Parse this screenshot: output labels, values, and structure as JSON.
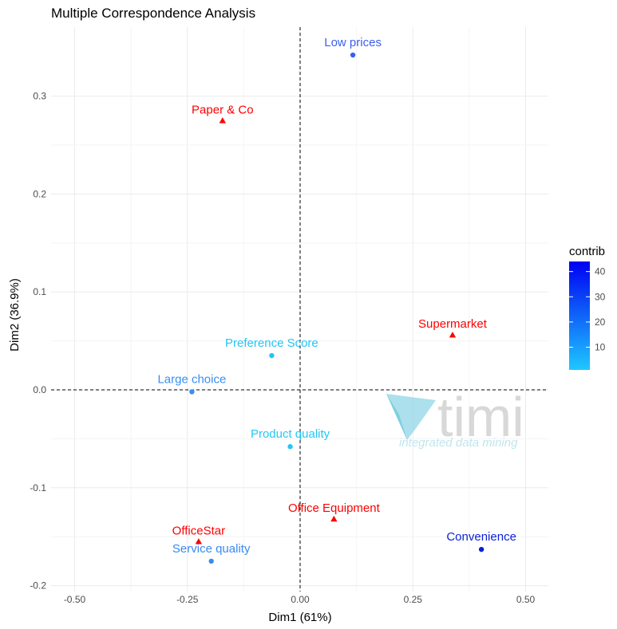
{
  "chart_data": {
    "type": "scatter",
    "title": "Multiple Correspondence Analysis",
    "xlabel": "Dim1 (61%)",
    "ylabel": "Dim2 (36.9%)",
    "xlim": [
      -0.55,
      0.55
    ],
    "ylim": [
      -0.2,
      0.36
    ],
    "xticks": [
      -0.5,
      -0.25,
      0.0,
      0.25,
      0.5
    ],
    "xtick_labels": [
      "-0.50",
      "-0.25",
      "0.00",
      "0.25",
      "0.50"
    ],
    "yticks": [
      -0.2,
      -0.1,
      0.0,
      0.1,
      0.2,
      0.3
    ],
    "ytick_labels": [
      "-0.2",
      "-0.1",
      "0.0",
      "0.1",
      "0.2",
      "0.3"
    ],
    "grid": true,
    "reference_lines": {
      "x": 0,
      "y": 0,
      "style": "dashed"
    },
    "supplementary_color": "#ff0000",
    "series": [
      {
        "marker": "circle",
        "colored_by": "contrib",
        "points": [
          {
            "label": "Low prices",
            "x": 0.117,
            "y": 0.342,
            "contrib": 38,
            "color": "#3a5ef2"
          },
          {
            "label": "Preference Score",
            "x": -0.063,
            "y": 0.035,
            "contrib": 2,
            "color": "#22c5f5"
          },
          {
            "label": "Large choice",
            "x": -0.24,
            "y": -0.002,
            "contrib": 17,
            "color": "#3a8ef0"
          },
          {
            "label": "Product quality",
            "x": -0.022,
            "y": -0.058,
            "contrib": 1,
            "color": "#22c8f5"
          },
          {
            "label": "Service quality",
            "x": -0.197,
            "y": -0.175,
            "contrib": 18,
            "color": "#3a8af0"
          },
          {
            "label": "Convenience",
            "x": 0.402,
            "y": -0.163,
            "contrib": 44,
            "color": "#0b1fd6"
          }
        ]
      },
      {
        "marker": "triangle",
        "points": [
          {
            "label": "Paper & Co",
            "x": -0.172,
            "y": 0.275
          },
          {
            "label": "Supermarket",
            "x": 0.338,
            "y": 0.056
          },
          {
            "label": "Office Equipment",
            "x": 0.075,
            "y": -0.132
          },
          {
            "label": "OfficeStar",
            "x": -0.225,
            "y": -0.155
          }
        ]
      }
    ],
    "legend": {
      "title": "contrib",
      "type": "colorbar",
      "placement": "right",
      "range": [
        1,
        44
      ],
      "ticks": [
        10,
        20,
        30,
        40
      ],
      "tick_labels": [
        "10",
        "20",
        "30",
        "40"
      ],
      "color_low": "#1ec8ff",
      "color_high": "#0000f2"
    }
  },
  "watermark": {
    "logo_text": "timi",
    "tagline": "integrated data mining",
    "text_color": "#d2d2d2",
    "tagline_color": "#bfe6ee",
    "logo_color": "#8fd6e6"
  }
}
